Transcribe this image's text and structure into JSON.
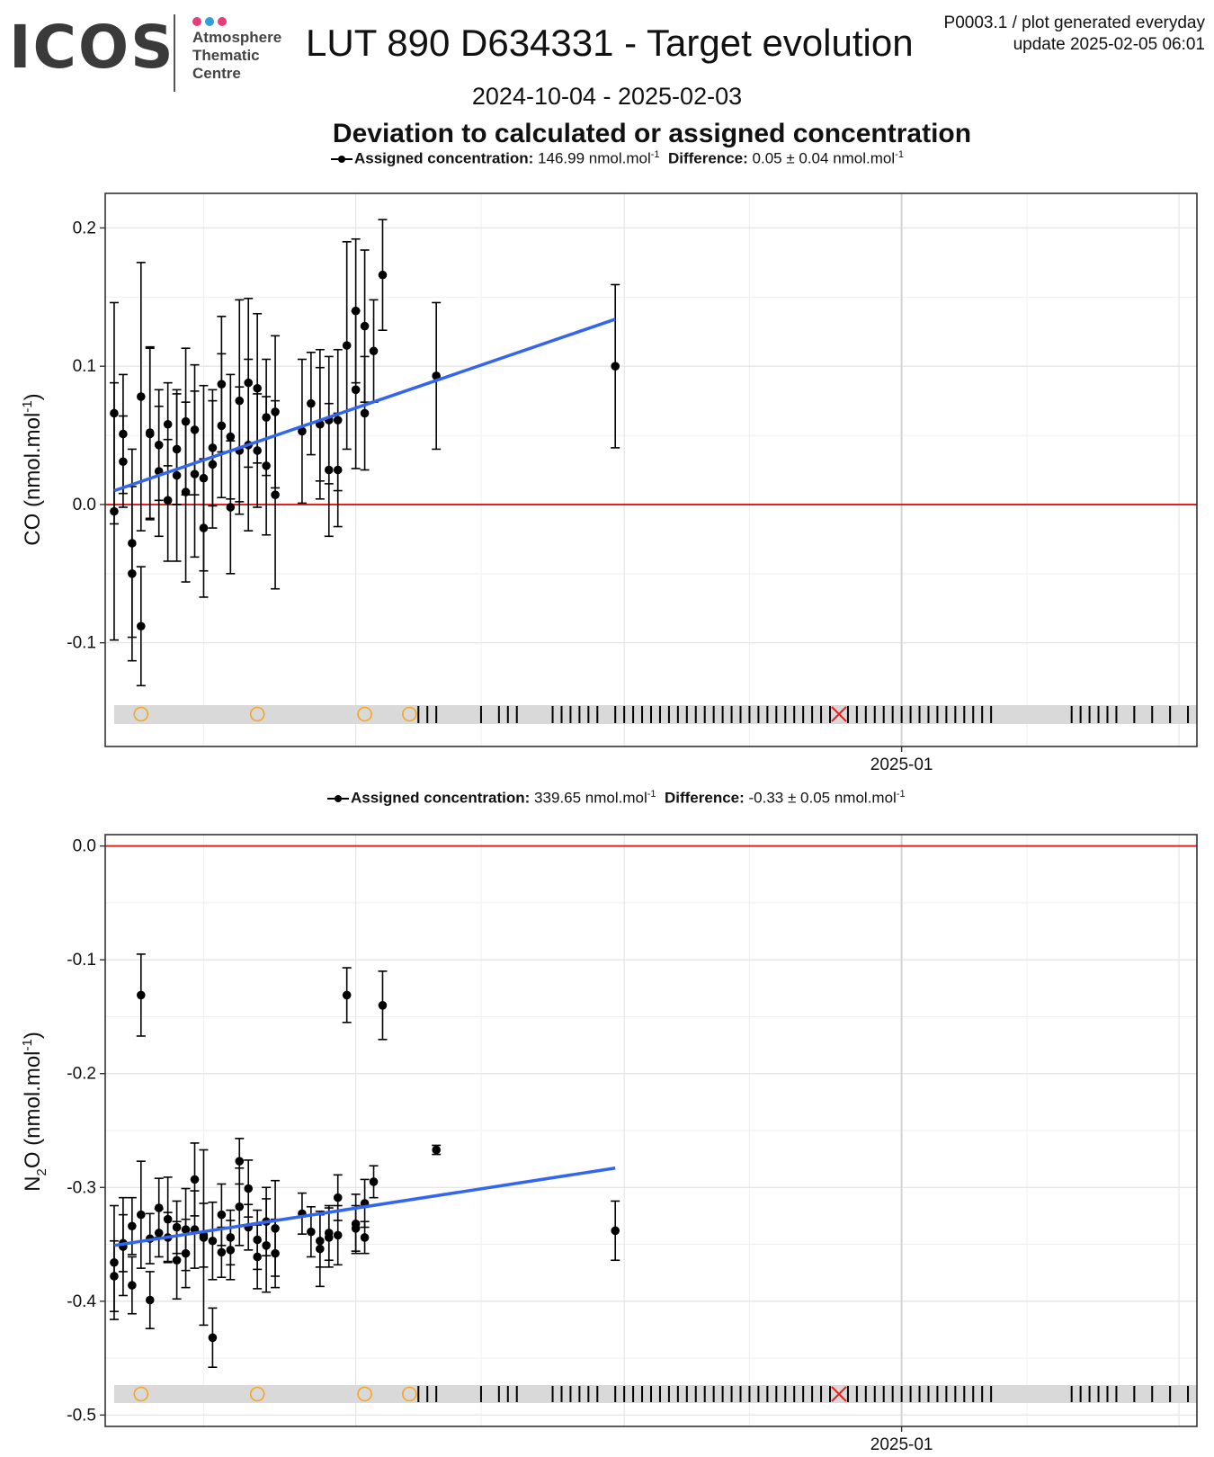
{
  "logo": {
    "wordmark": "ICOS",
    "subtitle": "Atmosphere\nThematic\nCentre",
    "dot_colors": [
      "#e63d7a",
      "#2f9fdc",
      "#e63d7a"
    ]
  },
  "header": {
    "title": "LUT 890 D634331 - Target evolution",
    "meta_line1": "P0003.1 / plot generated everyday",
    "meta_line2": "update  2025-02-05 06:01",
    "date_range": "2024-10-04 - 2025-02-03",
    "subtitle": "Deviation to calculated or assigned concentration"
  },
  "colors": {
    "trend": "#3366ee",
    "zero_line": "#e8201c",
    "open_marker": "#f5a623",
    "flag_marker": "#e8201c",
    "band": "#d9d9d9"
  },
  "chart_data": [
    {
      "type": "scatter",
      "gas": "CO",
      "ylabel": "CO (nmol.mol",
      "ylabel_sup": "-1",
      "ylabel_end": ")",
      "legend": {
        "assigned_label": "Assigned concentration:",
        "assigned_value": "146.99 nmol.mol",
        "difference_label": "Difference:",
        "difference_value": "0.05 ± 0.04 nmol.mol",
        "unit_sup": "-1"
      },
      "xlim": [
        "2024-10-04",
        "2025-02-03"
      ],
      "x_tick_labels": [
        {
          "date": "2025-01-01",
          "label": "2025-01"
        }
      ],
      "ylim": [
        -0.175,
        0.225
      ],
      "y_ticks": [
        -0.1,
        0.0,
        0.1,
        0.2
      ],
      "y_tick_labels": [
        "-0.1",
        "0.0",
        "0.1",
        "0.2"
      ],
      "reference_line": 0.0,
      "trend": {
        "start": [
          "2024-10-05",
          0.01
        ],
        "end": [
          "2024-11-30",
          0.134
        ]
      },
      "points": [
        [
          "2024-10-05",
          0.066,
          0.08
        ],
        [
          "2024-10-05",
          -0.005,
          0.093
        ],
        [
          "2024-10-06",
          0.051,
          0.043
        ],
        [
          "2024-10-06",
          0.031,
          0.033
        ],
        [
          "2024-10-07",
          -0.028,
          0.068
        ],
        [
          "2024-10-07",
          -0.05,
          0.063
        ],
        [
          "2024-10-08",
          -0.088,
          0.043
        ],
        [
          "2024-10-08",
          0.078,
          0.097
        ],
        [
          "2024-10-09",
          0.052,
          0.062
        ],
        [
          "2024-10-09",
          0.051,
          0.062
        ],
        [
          "2024-10-10",
          0.024,
          0.047
        ],
        [
          "2024-10-10",
          0.043,
          0.04
        ],
        [
          "2024-10-11",
          0.003,
          0.044
        ],
        [
          "2024-10-11",
          0.058,
          0.03
        ],
        [
          "2024-10-12",
          0.04,
          0.04
        ],
        [
          "2024-10-12",
          0.021,
          0.062
        ],
        [
          "2024-10-13",
          0.06,
          0.053
        ],
        [
          "2024-10-13",
          0.009,
          0.065
        ],
        [
          "2024-10-14",
          0.022,
          0.06
        ],
        [
          "2024-10-14",
          0.054,
          0.047
        ],
        [
          "2024-10-15",
          -0.017,
          0.05
        ],
        [
          "2024-10-15",
          0.019,
          0.067
        ],
        [
          "2024-10-16",
          0.041,
          0.042
        ],
        [
          "2024-10-16",
          0.029,
          0.046
        ],
        [
          "2024-10-17",
          0.057,
          0.052
        ],
        [
          "2024-10-17",
          0.087,
          0.049
        ],
        [
          "2024-10-18",
          -0.002,
          0.048
        ],
        [
          "2024-10-18",
          0.049,
          0.045
        ],
        [
          "2024-10-19",
          0.039,
          0.046
        ],
        [
          "2024-10-19",
          0.075,
          0.073
        ],
        [
          "2024-10-20",
          0.043,
          0.062
        ],
        [
          "2024-10-20",
          0.088,
          0.061
        ],
        [
          "2024-10-21",
          0.039,
          0.041
        ],
        [
          "2024-10-21",
          0.084,
          0.054
        ],
        [
          "2024-10-22",
          0.063,
          0.042
        ],
        [
          "2024-10-22",
          0.028,
          0.05
        ],
        [
          "2024-10-23",
          0.007,
          0.068
        ],
        [
          "2024-10-23",
          0.067,
          0.055
        ],
        [
          "2024-10-26",
          0.053,
          0.052
        ],
        [
          "2024-10-27",
          0.073,
          0.037
        ],
        [
          "2024-10-28",
          0.058,
          0.054
        ],
        [
          "2024-10-28",
          0.058,
          0.041
        ],
        [
          "2024-10-29",
          0.025,
          0.048
        ],
        [
          "2024-10-29",
          0.061,
          0.046
        ],
        [
          "2024-10-30",
          0.061,
          0.051
        ],
        [
          "2024-10-30",
          0.025,
          0.041
        ],
        [
          "2024-10-31",
          0.115,
          0.075
        ],
        [
          "2024-11-01",
          0.14,
          0.052
        ],
        [
          "2024-11-01",
          0.083,
          0.057
        ],
        [
          "2024-11-02",
          0.066,
          0.041
        ],
        [
          "2024-11-02",
          0.129,
          0.055
        ],
        [
          "2024-11-03",
          0.111,
          0.037
        ],
        [
          "2024-11-04",
          0.166,
          0.04
        ],
        [
          "2024-11-10",
          0.093,
          0.053
        ],
        [
          "2024-11-30",
          0.1,
          0.059
        ]
      ],
      "open_markers": [
        "2024-10-08",
        "2024-10-21",
        "2024-11-02",
        "2024-11-07"
      ],
      "flag_markers": [
        "2024-12-25"
      ],
      "tick_marks": [
        "2024-11-08",
        "2024-11-09",
        "2024-11-10",
        "2024-11-15",
        "2024-11-17",
        "2024-11-18",
        "2024-11-19",
        "2024-11-23",
        "2024-11-24",
        "2024-11-25",
        "2024-11-26",
        "2024-11-27",
        "2024-11-28",
        "2024-11-30",
        "2024-12-01",
        "2024-12-02",
        "2024-12-03",
        "2024-12-04",
        "2024-12-05",
        "2024-12-06",
        "2024-12-07",
        "2024-12-08",
        "2024-12-09",
        "2024-12-10",
        "2024-12-11",
        "2024-12-12",
        "2024-12-13",
        "2024-12-14",
        "2024-12-15",
        "2024-12-16",
        "2024-12-17",
        "2024-12-18",
        "2024-12-19",
        "2024-12-20",
        "2024-12-21",
        "2024-12-22",
        "2024-12-23",
        "2024-12-24",
        "2024-12-26",
        "2024-12-27",
        "2024-12-28",
        "2024-12-29",
        "2024-12-30",
        "2024-12-31",
        "2025-01-01",
        "2025-01-02",
        "2025-01-03",
        "2025-01-04",
        "2025-01-05",
        "2025-01-06",
        "2025-01-07",
        "2025-01-08",
        "2025-01-09",
        "2025-01-10",
        "2025-01-11",
        "2025-01-20",
        "2025-01-21",
        "2025-01-22",
        "2025-01-23",
        "2025-01-24",
        "2025-01-25",
        "2025-01-27",
        "2025-01-29",
        "2025-01-31",
        "2025-02-02"
      ]
    },
    {
      "type": "scatter",
      "gas": "N2O",
      "ylabel": "N",
      "ylabel_sub": "2",
      "ylabel_mid": "O (nmol.mol",
      "ylabel_sup": "-1",
      "ylabel_end": ")",
      "legend": {
        "assigned_label": "Assigned concentration:",
        "assigned_value": "339.65 nmol.mol",
        "difference_label": "Difference:",
        "difference_value": "-0.33 ± 0.05 nmol.mol",
        "unit_sup": "-1"
      },
      "xlim": [
        "2024-10-04",
        "2025-02-03"
      ],
      "x_tick_labels": [
        {
          "date": "2025-01-01",
          "label": "2025-01"
        }
      ],
      "ylim": [
        -0.51,
        0.01
      ],
      "y_ticks": [
        -0.5,
        -0.4,
        -0.3,
        -0.2,
        -0.1,
        0.0
      ],
      "y_tick_labels": [
        "-0.5",
        "-0.4",
        "-0.3",
        "-0.2",
        "-0.1",
        "0.0"
      ],
      "reference_line": 0.0,
      "trend": {
        "start": [
          "2024-10-05",
          -0.351
        ],
        "end": [
          "2024-11-30",
          -0.283
        ]
      },
      "points": [
        [
          "2024-10-05",
          -0.366,
          0.05
        ],
        [
          "2024-10-05",
          -0.378,
          0.031
        ],
        [
          "2024-10-06",
          -0.352,
          0.043
        ],
        [
          "2024-10-06",
          -0.349,
          0.025
        ],
        [
          "2024-10-07",
          -0.386,
          0.025
        ],
        [
          "2024-10-07",
          -0.334,
          0.025
        ],
        [
          "2024-10-08",
          -0.324,
          0.047
        ],
        [
          "2024-10-08",
          -0.131,
          0.036
        ],
        [
          "2024-10-09",
          -0.399,
          0.025
        ],
        [
          "2024-10-09",
          -0.345,
          0.022
        ],
        [
          "2024-10-10",
          -0.34,
          0.021
        ],
        [
          "2024-10-10",
          -0.318,
          0.026
        ],
        [
          "2024-10-11",
          -0.328,
          0.037
        ],
        [
          "2024-10-11",
          -0.344,
          0.022
        ],
        [
          "2024-10-12",
          -0.364,
          0.034
        ],
        [
          "2024-10-12",
          -0.335,
          0.023
        ],
        [
          "2024-10-13",
          -0.337,
          0.036
        ],
        [
          "2024-10-13",
          -0.358,
          0.03
        ],
        [
          "2024-10-14",
          -0.293,
          0.032
        ],
        [
          "2024-10-14",
          -0.337,
          0.034
        ],
        [
          "2024-10-15",
          -0.342,
          0.028
        ],
        [
          "2024-10-15",
          -0.344,
          0.077
        ],
        [
          "2024-10-16",
          -0.432,
          0.026
        ],
        [
          "2024-10-16",
          -0.347,
          0.034
        ],
        [
          "2024-10-17",
          -0.357,
          0.022
        ],
        [
          "2024-10-17",
          -0.324,
          0.027
        ],
        [
          "2024-10-18",
          -0.344,
          0.024
        ],
        [
          "2024-10-18",
          -0.355,
          0.026
        ],
        [
          "2024-10-19",
          -0.317,
          0.034
        ],
        [
          "2024-10-19",
          -0.277,
          0.02
        ],
        [
          "2024-10-20",
          -0.335,
          0.02
        ],
        [
          "2024-10-20",
          -0.301,
          0.025
        ],
        [
          "2024-10-21",
          -0.361,
          0.028
        ],
        [
          "2024-10-21",
          -0.346,
          0.026
        ],
        [
          "2024-10-22",
          -0.33,
          0.03
        ],
        [
          "2024-10-22",
          -0.351,
          0.041
        ],
        [
          "2024-10-23",
          -0.358,
          0.03
        ],
        [
          "2024-10-23",
          -0.336,
          0.042
        ],
        [
          "2024-10-26",
          -0.323,
          0.018
        ],
        [
          "2024-10-27",
          -0.339,
          0.022
        ],
        [
          "2024-10-28",
          -0.347,
          0.023
        ],
        [
          "2024-10-28",
          -0.354,
          0.033
        ],
        [
          "2024-10-29",
          -0.344,
          0.026
        ],
        [
          "2024-10-29",
          -0.34,
          0.024
        ],
        [
          "2024-10-30",
          -0.342,
          0.026
        ],
        [
          "2024-10-30",
          -0.309,
          0.02
        ],
        [
          "2024-10-31",
          -0.131,
          0.024
        ],
        [
          "2024-11-01",
          -0.336,
          0.02
        ],
        [
          "2024-11-01",
          -0.332,
          0.026
        ],
        [
          "2024-11-02",
          -0.344,
          0.014
        ],
        [
          "2024-11-02",
          -0.314,
          0.021
        ],
        [
          "2024-11-03",
          -0.295,
          0.014
        ],
        [
          "2024-11-04",
          -0.14,
          0.03
        ],
        [
          "2024-11-10",
          -0.267,
          0.004
        ],
        [
          "2024-11-30",
          -0.338,
          0.026
        ]
      ],
      "open_markers": [
        "2024-10-08",
        "2024-10-21",
        "2024-11-02",
        "2024-11-07"
      ],
      "flag_markers": [
        "2024-12-25"
      ],
      "tick_marks": [
        "2024-11-08",
        "2024-11-09",
        "2024-11-10",
        "2024-11-15",
        "2024-11-17",
        "2024-11-18",
        "2024-11-19",
        "2024-11-23",
        "2024-11-24",
        "2024-11-25",
        "2024-11-26",
        "2024-11-27",
        "2024-11-28",
        "2024-11-30",
        "2024-12-01",
        "2024-12-02",
        "2024-12-03",
        "2024-12-04",
        "2024-12-05",
        "2024-12-06",
        "2024-12-07",
        "2024-12-08",
        "2024-12-09",
        "2024-12-10",
        "2024-12-11",
        "2024-12-12",
        "2024-12-13",
        "2024-12-14",
        "2024-12-15",
        "2024-12-16",
        "2024-12-17",
        "2024-12-18",
        "2024-12-19",
        "2024-12-20",
        "2024-12-21",
        "2024-12-22",
        "2024-12-23",
        "2024-12-24",
        "2024-12-26",
        "2024-12-27",
        "2024-12-28",
        "2024-12-29",
        "2024-12-30",
        "2024-12-31",
        "2025-01-01",
        "2025-01-02",
        "2025-01-03",
        "2025-01-04",
        "2025-01-05",
        "2025-01-06",
        "2025-01-07",
        "2025-01-08",
        "2025-01-09",
        "2025-01-10",
        "2025-01-11",
        "2025-01-20",
        "2025-01-21",
        "2025-01-22",
        "2025-01-23",
        "2025-01-24",
        "2025-01-25",
        "2025-01-27",
        "2025-01-29",
        "2025-01-31",
        "2025-02-02"
      ]
    }
  ]
}
